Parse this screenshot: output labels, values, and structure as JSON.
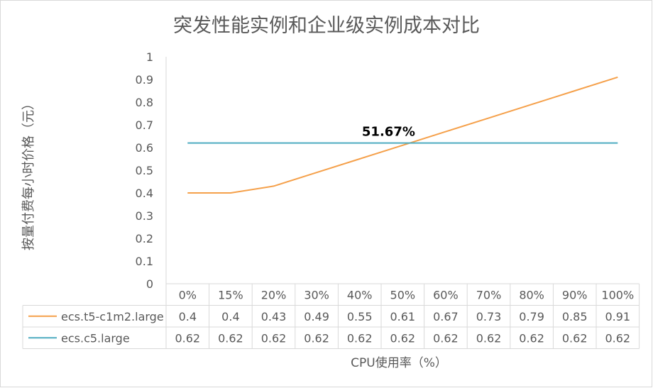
{
  "chart_data": {
    "type": "line",
    "title": "突发性能实例和企业级实例成本对比",
    "ylabel": "按量付费每小时价格（元）",
    "xlabel": "CPU使用率（%）",
    "ylim": [
      0,
      1
    ],
    "yticks": [
      0,
      0.1,
      0.2,
      0.3,
      0.4,
      0.5,
      0.6,
      0.7,
      0.8,
      0.9,
      1
    ],
    "ytick_labels": [
      "0",
      "0.1",
      "0.2",
      "0.3",
      "0.4",
      "0.5",
      "0.6",
      "0.7",
      "0.8",
      "0.9",
      "1"
    ],
    "categories": [
      "0%",
      "15%",
      "20%",
      "30%",
      "40%",
      "50%",
      "60%",
      "70%",
      "80%",
      "90%",
      "100%"
    ],
    "series": [
      {
        "name": "ecs.t5-c1m2.large",
        "color": "#f5a04a",
        "values": [
          0.4,
          0.4,
          0.43,
          0.49,
          0.55,
          0.61,
          0.67,
          0.73,
          0.79,
          0.85,
          0.91
        ]
      },
      {
        "name": "ecs.c5.large",
        "color": "#4eacc0",
        "values": [
          0.62,
          0.62,
          0.62,
          0.62,
          0.62,
          0.62,
          0.62,
          0.62,
          0.62,
          0.62,
          0.62
        ]
      }
    ],
    "annotation": {
      "text": "51.67%",
      "x_index": 5.167,
      "y": 0.62
    },
    "legend": "data-table",
    "grid": false
  }
}
